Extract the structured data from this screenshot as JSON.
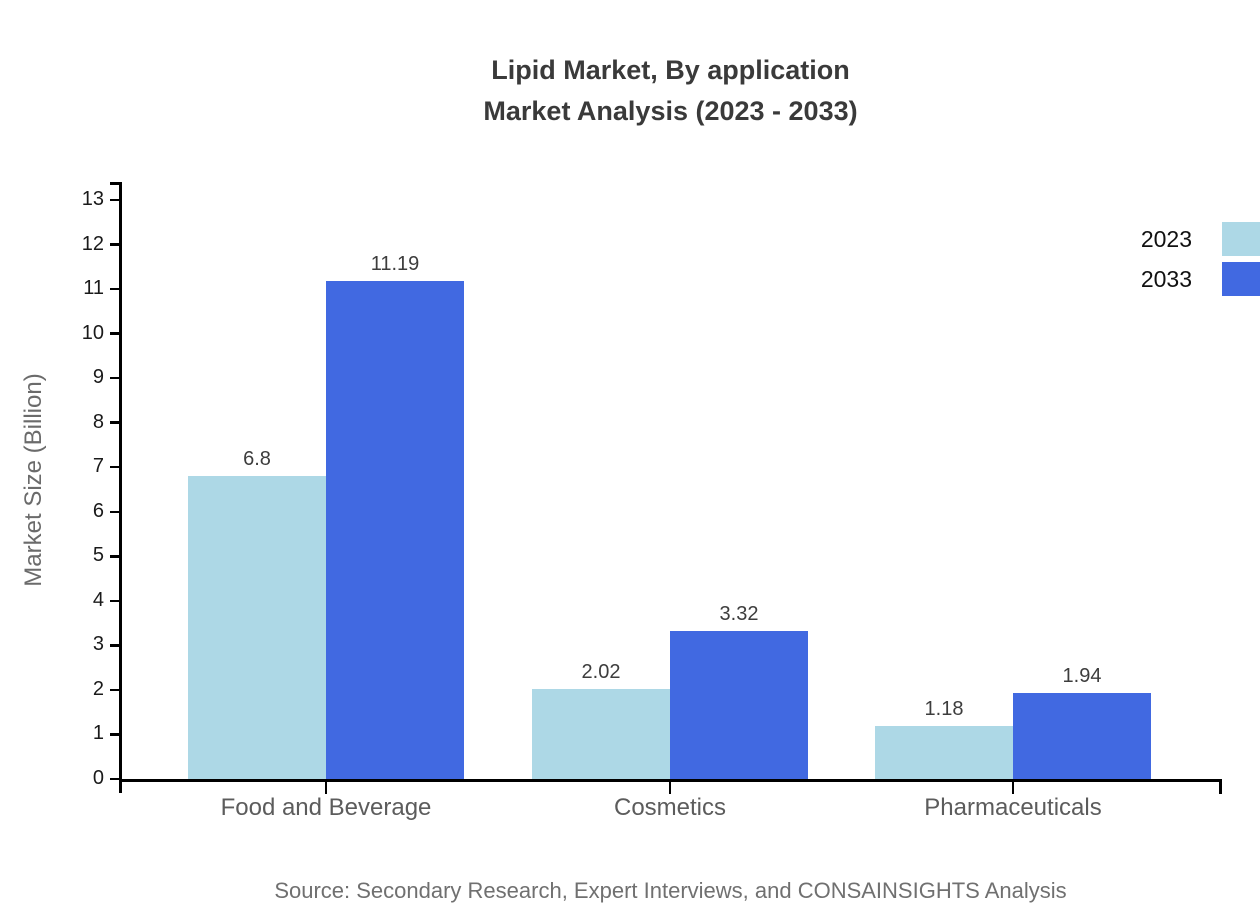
{
  "title": {
    "line1": "Lipid Market, By application",
    "line2": "Market Analysis (2023 - 2033)"
  },
  "y_axis_label": "Market Size (Billion)",
  "source_note": "Source: Secondary Research, Expert Interviews, and CONSAINSIGHTS Analysis",
  "colors": {
    "series_2023": "#ADD8E6",
    "series_2033": "#4169E1",
    "axis": "#000000",
    "title_text": "#3a3a3a",
    "category_text": "#5c5c5c",
    "muted_text": "#707070"
  },
  "chart_data": {
    "type": "bar",
    "title": "Lipid Market, By application Market Analysis (2023 - 2033)",
    "categories": [
      "Food and Beverage",
      "Cosmetics",
      "Pharmaceuticals"
    ],
    "series": [
      {
        "name": "2023",
        "color": "#ADD8E6",
        "values": [
          6.8,
          2.02,
          1.18
        ]
      },
      {
        "name": "2033",
        "color": "#4169E1",
        "values": [
          11.19,
          3.32,
          1.94
        ]
      }
    ],
    "value_labels": [
      "6.8",
      "11.19",
      "2.02",
      "3.32",
      "1.18",
      "1.94"
    ],
    "xlabel": "",
    "ylabel": "Market Size (Billion)",
    "ylim": [
      0,
      13
    ],
    "yticks": [
      0,
      1,
      2,
      3,
      4,
      5,
      6,
      7,
      8,
      9,
      10,
      11,
      12,
      13
    ],
    "grid": false,
    "legend_position": "top-right",
    "bar_value_labels_shown": true
  }
}
